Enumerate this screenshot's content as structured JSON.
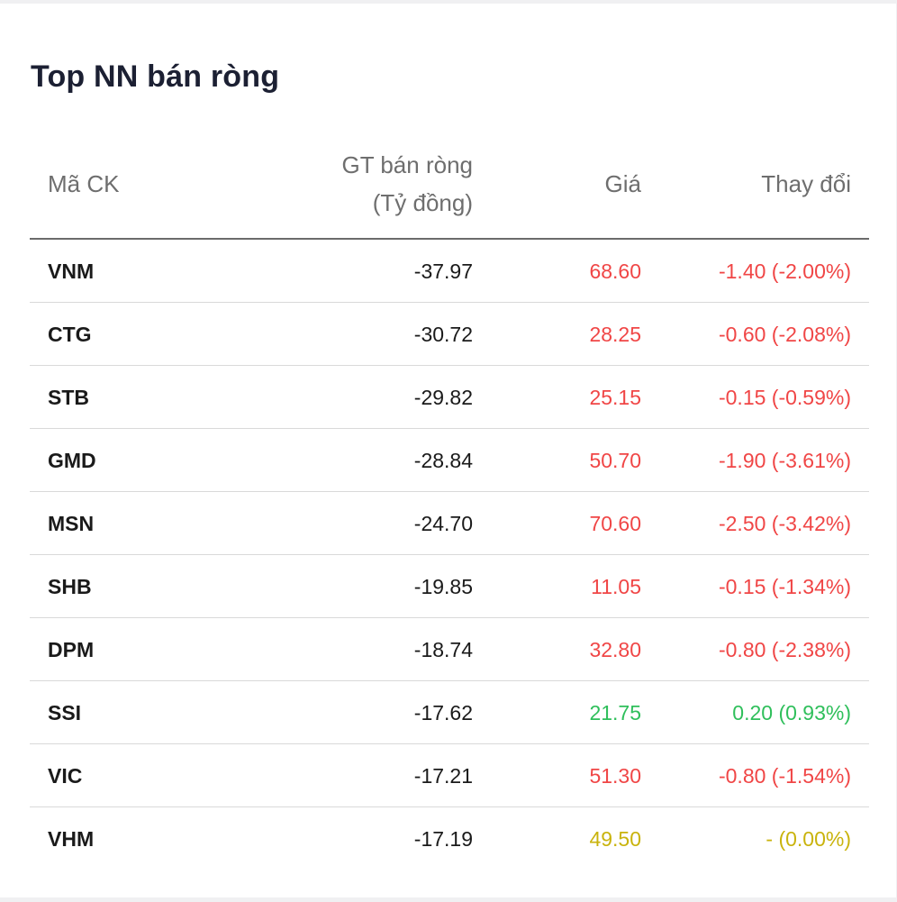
{
  "title": "Top NN bán ròng",
  "columns": {
    "code": "Mã CK",
    "value_line1": "GT bán ròng",
    "value_line2": "(Tỷ đồng)",
    "price": "Giá",
    "change": "Thay đổi"
  },
  "colors": {
    "down": "#f04646",
    "up": "#2fbf5b",
    "flat": "#c9b30c",
    "title": "#1c2033"
  },
  "rows": [
    {
      "code": "VNM",
      "value": "-37.97",
      "price": "68.60",
      "change": "-1.40 (-2.00%)",
      "trend": "down"
    },
    {
      "code": "CTG",
      "value": "-30.72",
      "price": "28.25",
      "change": "-0.60 (-2.08%)",
      "trend": "down"
    },
    {
      "code": "STB",
      "value": "-29.82",
      "price": "25.15",
      "change": "-0.15 (-0.59%)",
      "trend": "down"
    },
    {
      "code": "GMD",
      "value": "-28.84",
      "price": "50.70",
      "change": "-1.90 (-3.61%)",
      "trend": "down"
    },
    {
      "code": "MSN",
      "value": "-24.70",
      "price": "70.60",
      "change": "-2.50 (-3.42%)",
      "trend": "down"
    },
    {
      "code": "SHB",
      "value": "-19.85",
      "price": "11.05",
      "change": "-0.15 (-1.34%)",
      "trend": "down"
    },
    {
      "code": "DPM",
      "value": "-18.74",
      "price": "32.80",
      "change": "-0.80 (-2.38%)",
      "trend": "down"
    },
    {
      "code": "SSI",
      "value": "-17.62",
      "price": "21.75",
      "change": "0.20 (0.93%)",
      "trend": "up"
    },
    {
      "code": "VIC",
      "value": "-17.21",
      "price": "51.30",
      "change": "-0.80 (-1.54%)",
      "trend": "down"
    },
    {
      "code": "VHM",
      "value": "-17.19",
      "price": "49.50",
      "change": "- (0.00%)",
      "trend": "flat"
    }
  ]
}
